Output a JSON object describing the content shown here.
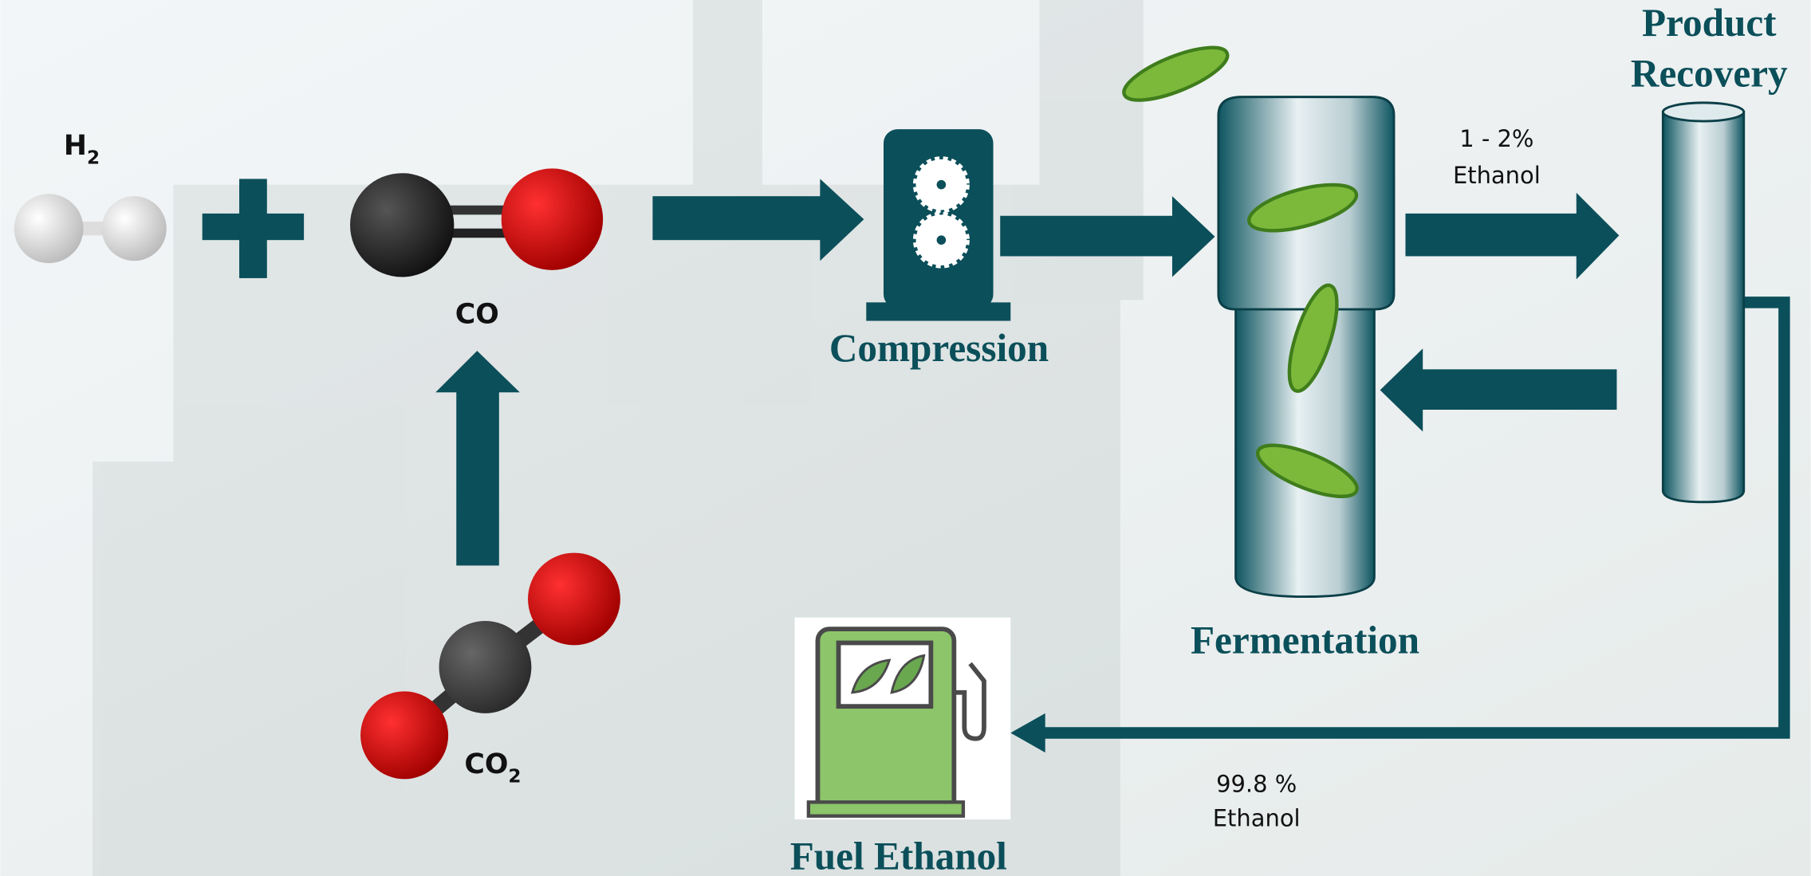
{
  "molecules": {
    "h2": {
      "main": "H",
      "sub": "2"
    },
    "co": "CO",
    "co2": {
      "main": "CO",
      "sub": "2"
    }
  },
  "stages": {
    "compression": "Compression",
    "fermentation": "Fermentation",
    "product_recovery": [
      "Product",
      "Recovery"
    ],
    "fuel": "Fuel Ethanol"
  },
  "annotations": {
    "dilute": [
      "1 - 2%",
      "Ethanol"
    ],
    "pure": [
      "99.8 %",
      "Ethanol"
    ]
  }
}
